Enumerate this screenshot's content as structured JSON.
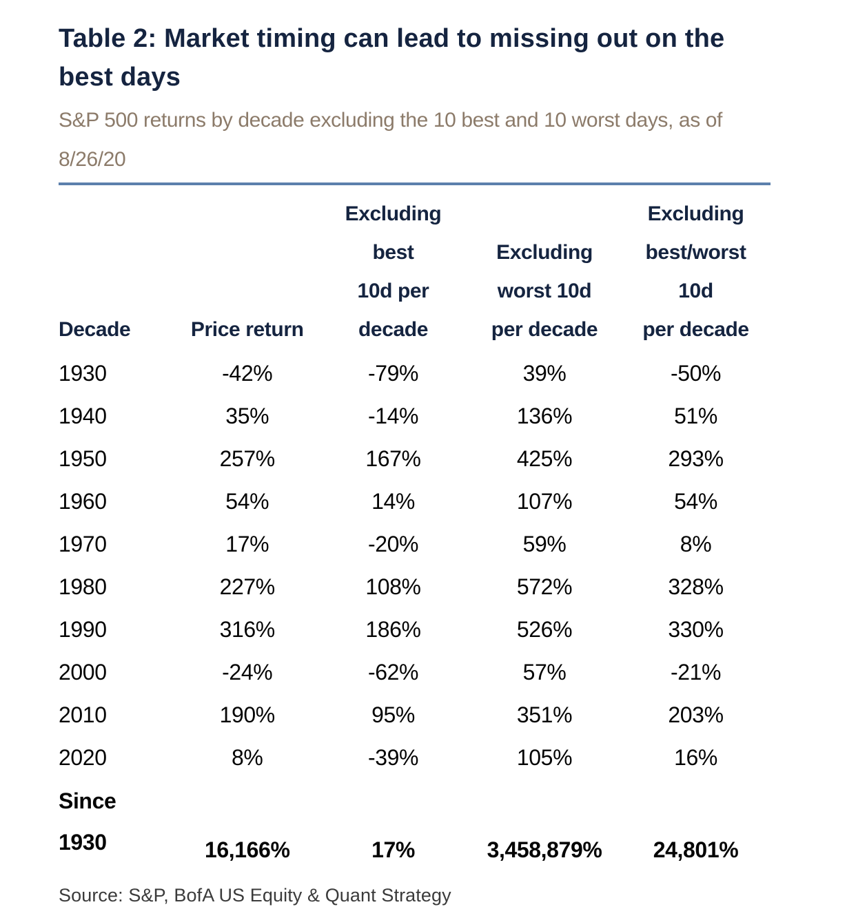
{
  "page": {
    "title": "Table 2: Market timing can lead to missing out on the best days",
    "subtitle": "S&P 500 returns by decade excluding the 10 best and 10 worst days, as of 8/26/20",
    "source": "Source: S&P, BofA US Equity & Quant Strategy"
  },
  "colors": {
    "heading_navy": "#152440",
    "subtitle_tan": "#8C7B6A",
    "rule_blue": "#5C80AC",
    "data_black": "#050505",
    "source_gray": "#3B3B3B"
  },
  "chart_data": {
    "type": "table",
    "title": "Table 2: Market timing can lead to missing out on the best days",
    "subtitle": "S&P 500 returns by decade excluding the 10 best and 10 worst days, as of 8/26/20",
    "columns": [
      "Decade",
      "Price return",
      "Excluding best 10d per decade",
      "Excluding worst 10d per decade",
      "Excluding best/worst 10d per decade"
    ],
    "columns_display": [
      "Decade",
      "Price return",
      "Excluding\nbest\n10d per\ndecade",
      "Excluding\nworst 10d\nper decade",
      "Excluding\nbest/worst\n10d\nper decade"
    ],
    "rows": [
      [
        "1930",
        "-42%",
        "-79%",
        "39%",
        "-50%"
      ],
      [
        "1940",
        "35%",
        "-14%",
        "136%",
        "51%"
      ],
      [
        "1950",
        "257%",
        "167%",
        "425%",
        "293%"
      ],
      [
        "1960",
        "54%",
        "14%",
        "107%",
        "54%"
      ],
      [
        "1970",
        "17%",
        "-20%",
        "59%",
        "8%"
      ],
      [
        "1980",
        "227%",
        "108%",
        "572%",
        "328%"
      ],
      [
        "1990",
        "316%",
        "186%",
        "526%",
        "330%"
      ],
      [
        "2000",
        "-24%",
        "-62%",
        "57%",
        "-21%"
      ],
      [
        "2010",
        "190%",
        "95%",
        "351%",
        "203%"
      ],
      [
        "2020",
        "8%",
        "-39%",
        "105%",
        "16%"
      ]
    ],
    "summary_row": [
      "Since\n1930",
      "16,166%",
      "17%",
      "3,458,879%",
      "24,801%"
    ],
    "source": "Source: S&P, BofA US Equity & Quant Strategy"
  }
}
